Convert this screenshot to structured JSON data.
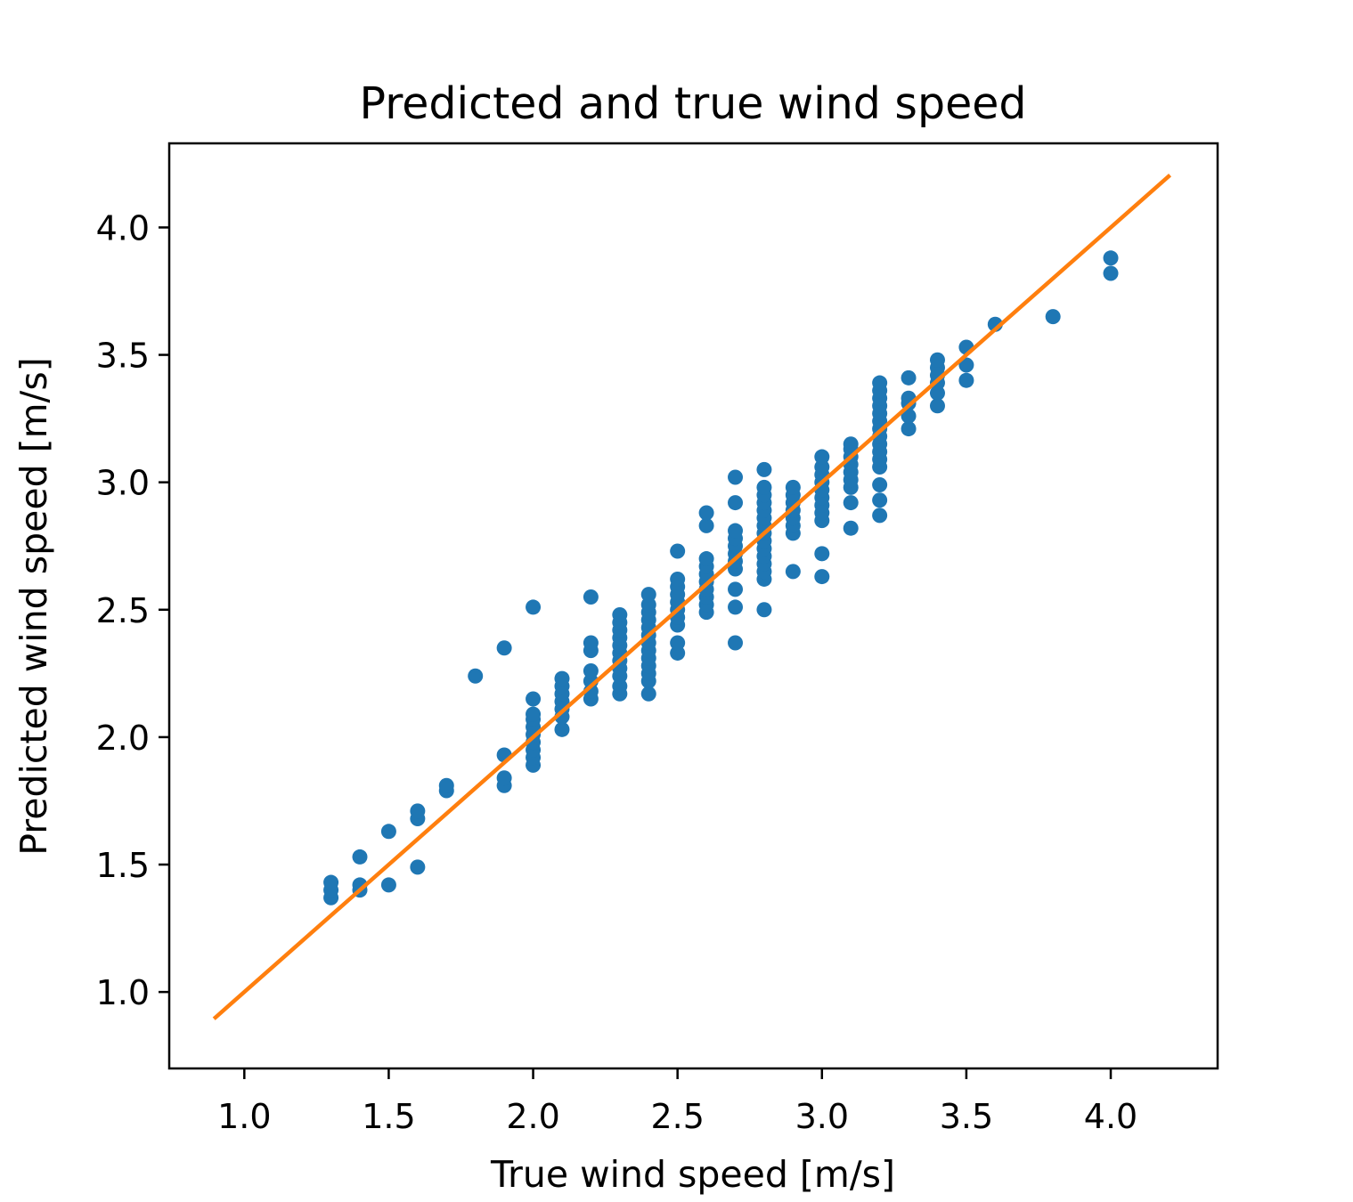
{
  "chart_data": {
    "type": "scatter",
    "title": "Predicted and true wind speed",
    "xlabel": "True wind speed [m/s]",
    "ylabel": "Predicted wind speed [m/s]",
    "xlim": [
      0.74,
      4.37
    ],
    "ylim": [
      0.7,
      4.33
    ],
    "xticks": [
      1.0,
      1.5,
      2.0,
      2.5,
      3.0,
      3.5,
      4.0
    ],
    "xtick_labels": [
      "1.0",
      "1.5",
      "2.0",
      "2.5",
      "3.0",
      "3.5",
      "4.0"
    ],
    "yticks": [
      1.0,
      1.5,
      2.0,
      2.5,
      3.0,
      3.5,
      4.0
    ],
    "ytick_labels": [
      "1.0",
      "1.5",
      "2.0",
      "2.5",
      "3.0",
      "3.5",
      "4.0"
    ],
    "grid": false,
    "legend": "none",
    "series": [
      {
        "type": "scatter",
        "color": "#1f77b4",
        "points": [
          [
            1.3,
            1.37
          ],
          [
            1.3,
            1.4
          ],
          [
            1.3,
            1.43
          ],
          [
            1.4,
            1.4
          ],
          [
            1.4,
            1.42
          ],
          [
            1.4,
            1.53
          ],
          [
            1.5,
            1.42
          ],
          [
            1.5,
            1.63
          ],
          [
            1.6,
            1.49
          ],
          [
            1.6,
            1.68
          ],
          [
            1.6,
            1.71
          ],
          [
            1.7,
            1.79
          ],
          [
            1.7,
            1.81
          ],
          [
            1.8,
            2.24
          ],
          [
            1.9,
            1.81
          ],
          [
            1.9,
            1.84
          ],
          [
            1.9,
            1.93
          ],
          [
            1.9,
            2.35
          ],
          [
            2.0,
            1.89
          ],
          [
            2.0,
            1.92
          ],
          [
            2.0,
            1.95
          ],
          [
            2.0,
            1.98
          ],
          [
            2.0,
            2.01
          ],
          [
            2.0,
            2.04
          ],
          [
            2.0,
            2.07
          ],
          [
            2.0,
            2.09
          ],
          [
            2.0,
            2.15
          ],
          [
            2.0,
            2.51
          ],
          [
            2.1,
            2.03
          ],
          [
            2.1,
            2.08
          ],
          [
            2.1,
            2.11
          ],
          [
            2.1,
            2.14
          ],
          [
            2.1,
            2.17
          ],
          [
            2.1,
            2.2
          ],
          [
            2.1,
            2.23
          ],
          [
            2.2,
            2.15
          ],
          [
            2.2,
            2.18
          ],
          [
            2.2,
            2.22
          ],
          [
            2.2,
            2.26
          ],
          [
            2.2,
            2.34
          ],
          [
            2.2,
            2.37
          ],
          [
            2.2,
            2.55
          ],
          [
            2.3,
            2.17
          ],
          [
            2.3,
            2.2
          ],
          [
            2.3,
            2.24
          ],
          [
            2.3,
            2.27
          ],
          [
            2.3,
            2.3
          ],
          [
            2.3,
            2.33
          ],
          [
            2.3,
            2.36
          ],
          [
            2.3,
            2.39
          ],
          [
            2.3,
            2.42
          ],
          [
            2.3,
            2.45
          ],
          [
            2.3,
            2.48
          ],
          [
            2.4,
            2.17
          ],
          [
            2.4,
            2.22
          ],
          [
            2.4,
            2.25
          ],
          [
            2.4,
            2.28
          ],
          [
            2.4,
            2.31
          ],
          [
            2.4,
            2.34
          ],
          [
            2.4,
            2.37
          ],
          [
            2.4,
            2.4
          ],
          [
            2.4,
            2.43
          ],
          [
            2.4,
            2.46
          ],
          [
            2.4,
            2.49
          ],
          [
            2.4,
            2.52
          ],
          [
            2.4,
            2.56
          ],
          [
            2.5,
            2.33
          ],
          [
            2.5,
            2.37
          ],
          [
            2.5,
            2.44
          ],
          [
            2.5,
            2.47
          ],
          [
            2.5,
            2.5
          ],
          [
            2.5,
            2.53
          ],
          [
            2.5,
            2.56
          ],
          [
            2.5,
            2.59
          ],
          [
            2.5,
            2.62
          ],
          [
            2.5,
            2.73
          ],
          [
            2.6,
            2.49
          ],
          [
            2.6,
            2.52
          ],
          [
            2.6,
            2.55
          ],
          [
            2.6,
            2.58
          ],
          [
            2.6,
            2.61
          ],
          [
            2.6,
            2.64
          ],
          [
            2.6,
            2.67
          ],
          [
            2.6,
            2.7
          ],
          [
            2.6,
            2.83
          ],
          [
            2.6,
            2.88
          ],
          [
            2.7,
            2.37
          ],
          [
            2.7,
            2.51
          ],
          [
            2.7,
            2.58
          ],
          [
            2.7,
            2.66
          ],
          [
            2.7,
            2.69
          ],
          [
            2.7,
            2.72
          ],
          [
            2.7,
            2.75
          ],
          [
            2.7,
            2.78
          ],
          [
            2.7,
            2.81
          ],
          [
            2.7,
            2.92
          ],
          [
            2.7,
            3.02
          ],
          [
            2.8,
            2.5
          ],
          [
            2.8,
            2.62
          ],
          [
            2.8,
            2.65
          ],
          [
            2.8,
            2.68
          ],
          [
            2.8,
            2.71
          ],
          [
            2.8,
            2.74
          ],
          [
            2.8,
            2.77
          ],
          [
            2.8,
            2.8
          ],
          [
            2.8,
            2.83
          ],
          [
            2.8,
            2.86
          ],
          [
            2.8,
            2.89
          ],
          [
            2.8,
            2.92
          ],
          [
            2.8,
            2.95
          ],
          [
            2.8,
            2.98
          ],
          [
            2.8,
            3.05
          ],
          [
            2.9,
            2.65
          ],
          [
            2.9,
            2.8
          ],
          [
            2.9,
            2.83
          ],
          [
            2.9,
            2.86
          ],
          [
            2.9,
            2.89
          ],
          [
            2.9,
            2.92
          ],
          [
            2.9,
            2.95
          ],
          [
            2.9,
            2.98
          ],
          [
            3.0,
            2.63
          ],
          [
            3.0,
            2.72
          ],
          [
            3.0,
            2.85
          ],
          [
            3.0,
            2.88
          ],
          [
            3.0,
            2.91
          ],
          [
            3.0,
            2.94
          ],
          [
            3.0,
            2.97
          ],
          [
            3.0,
            3.0
          ],
          [
            3.0,
            3.03
          ],
          [
            3.0,
            3.06
          ],
          [
            3.0,
            3.1
          ],
          [
            3.1,
            2.82
          ],
          [
            3.1,
            2.92
          ],
          [
            3.1,
            2.98
          ],
          [
            3.1,
            3.01
          ],
          [
            3.1,
            3.04
          ],
          [
            3.1,
            3.07
          ],
          [
            3.1,
            3.1
          ],
          [
            3.1,
            3.13
          ],
          [
            3.1,
            3.15
          ],
          [
            3.2,
            2.87
          ],
          [
            3.2,
            2.93
          ],
          [
            3.2,
            2.99
          ],
          [
            3.2,
            3.06
          ],
          [
            3.2,
            3.09
          ],
          [
            3.2,
            3.12
          ],
          [
            3.2,
            3.15
          ],
          [
            3.2,
            3.18
          ],
          [
            3.2,
            3.21
          ],
          [
            3.2,
            3.24
          ],
          [
            3.2,
            3.27
          ],
          [
            3.2,
            3.3
          ],
          [
            3.2,
            3.33
          ],
          [
            3.2,
            3.36
          ],
          [
            3.2,
            3.39
          ],
          [
            3.3,
            3.21
          ],
          [
            3.3,
            3.26
          ],
          [
            3.3,
            3.31
          ],
          [
            3.3,
            3.33
          ],
          [
            3.3,
            3.41
          ],
          [
            3.4,
            3.3
          ],
          [
            3.4,
            3.35
          ],
          [
            3.4,
            3.39
          ],
          [
            3.4,
            3.42
          ],
          [
            3.4,
            3.45
          ],
          [
            3.4,
            3.48
          ],
          [
            3.5,
            3.4
          ],
          [
            3.5,
            3.46
          ],
          [
            3.5,
            3.53
          ],
          [
            3.6,
            3.62
          ],
          [
            3.8,
            3.65
          ],
          [
            4.0,
            3.82
          ],
          [
            4.0,
            3.88
          ]
        ]
      },
      {
        "type": "line",
        "color": "#ff7f0e",
        "x": [
          0.9,
          4.2
        ],
        "y": [
          0.9,
          4.2
        ]
      }
    ]
  }
}
